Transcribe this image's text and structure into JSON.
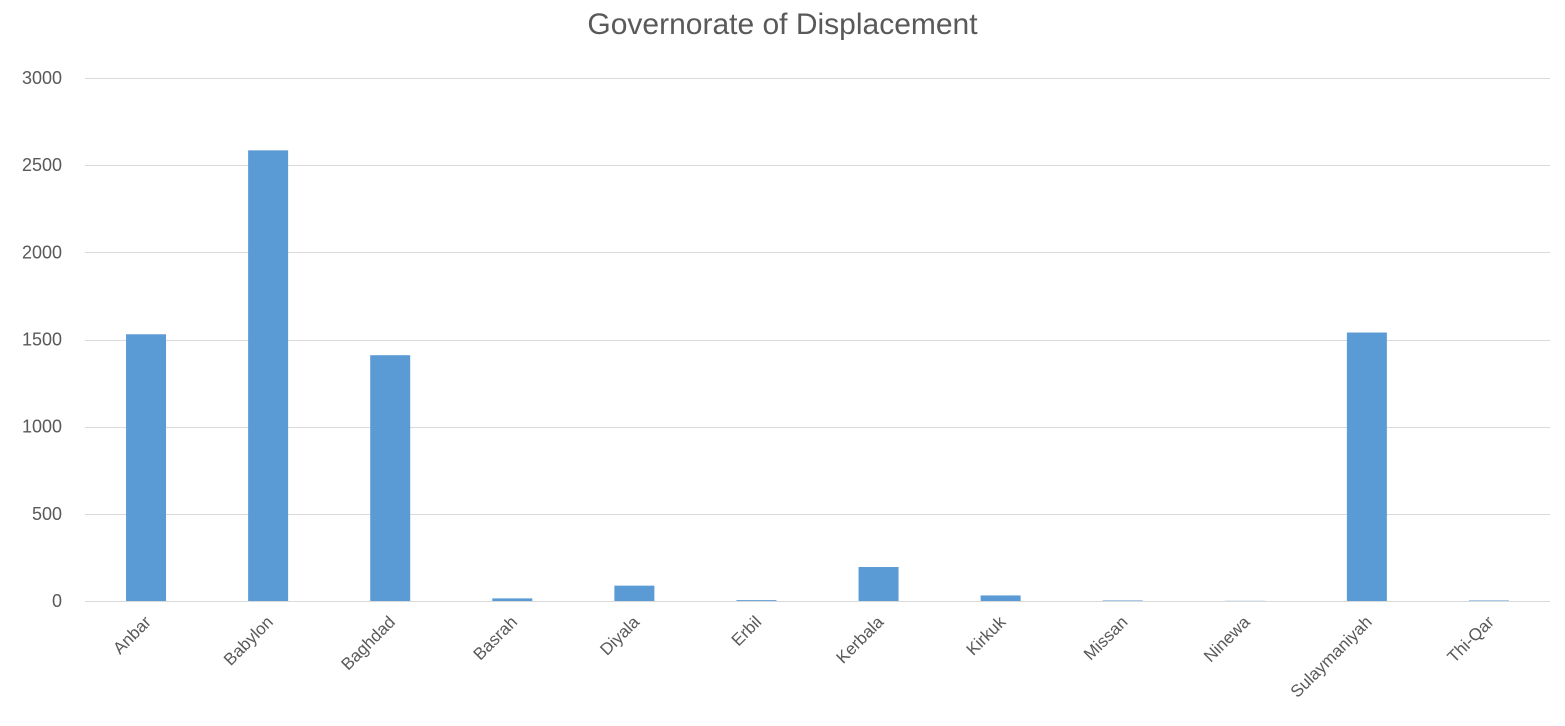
{
  "chart_data": {
    "type": "bar",
    "title": "Governorate of Displacement",
    "xlabel": "",
    "ylabel": "",
    "categories": [
      "Anbar",
      "Babylon",
      "Baghdad",
      "Basrah",
      "Diyala",
      "Erbil",
      "Kerbala",
      "Kirkuk",
      "Missan",
      "Ninewa",
      "Sulaymaniyah",
      "Thi-Qar"
    ],
    "values": [
      1530,
      2585,
      1410,
      15,
      88,
      5,
      195,
      32,
      3,
      1,
      1540,
      3
    ],
    "ylim": [
      0,
      3000
    ],
    "yticks": [
      0,
      500,
      1000,
      1500,
      2000,
      2500,
      3000
    ],
    "grid": true,
    "legend": "none",
    "colors": {
      "bar": "#5B9BD5",
      "grid": "#D9D9D9",
      "tick_text": "#595959",
      "title_text": "#595959"
    }
  }
}
